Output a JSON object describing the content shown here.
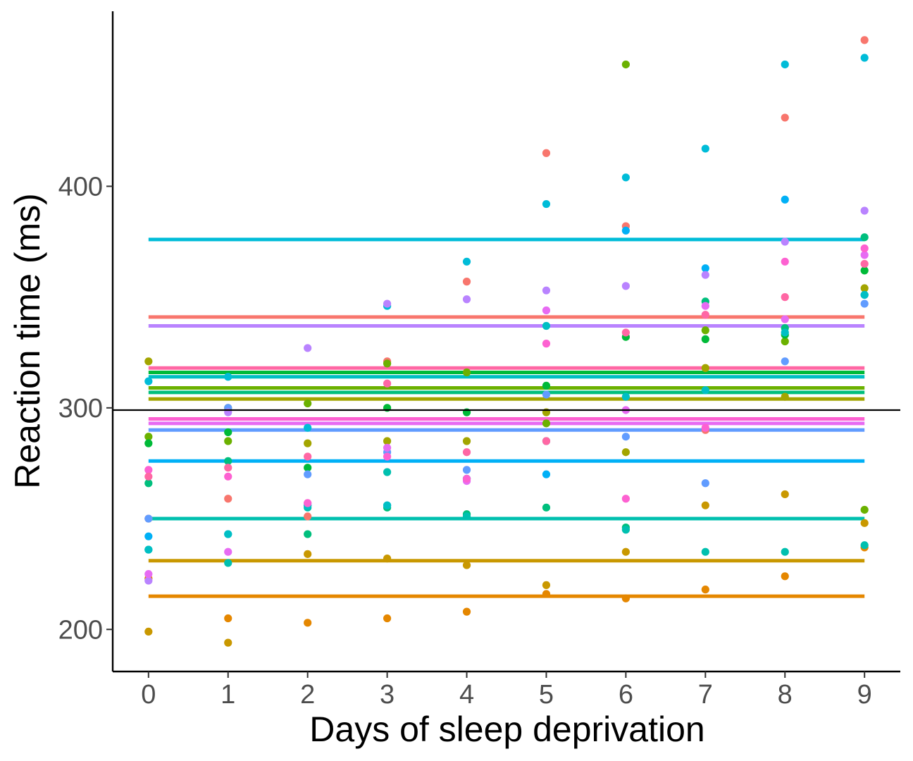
{
  "chart_data": {
    "type": "scatter",
    "title": "",
    "xlabel": "Days of sleep deprivation",
    "ylabel": "Reaction time (ms)",
    "xlim": [
      -0.45,
      9.45
    ],
    "ylim": [
      181,
      479
    ],
    "x_ticks": [
      0,
      1,
      2,
      3,
      4,
      5,
      6,
      7,
      8,
      9
    ],
    "y_ticks": [
      200,
      300,
      400
    ],
    "grid": false,
    "legend": "none",
    "reference_line": {
      "y": 299
    },
    "series": [
      {
        "color": "#F8766D",
        "intercept": 341,
        "values": [
          250,
          259,
          251,
          321,
          357,
          415,
          382,
          290,
          431,
          466
        ]
      },
      {
        "color": "#E58700",
        "intercept": 215,
        "values": [
          223,
          205,
          203,
          205,
          208,
          216,
          214,
          218,
          224,
          237
        ]
      },
      {
        "color": "#C99800",
        "intercept": 231,
        "values": [
          199,
          194,
          234,
          232,
          229,
          220,
          235,
          256,
          261,
          248
        ]
      },
      {
        "color": "#A3A500",
        "intercept": 304,
        "values": [
          321,
          300,
          284,
          285,
          285,
          298,
          280,
          318,
          305,
          354
        ]
      },
      {
        "color": "#6BB100",
        "intercept": 309,
        "values": [
          287,
          285,
          302,
          320,
          316,
          293,
          455,
          335,
          330,
          254
        ]
      },
      {
        "color": "#00BA38",
        "intercept": 316,
        "values": [
          284,
          289,
          273,
          300,
          298,
          310,
          332,
          331,
          333,
          362
        ]
      },
      {
        "color": "#00BF7D",
        "intercept": 307,
        "values": [
          266,
          276,
          243,
          255,
          252,
          255,
          246,
          348,
          336,
          377
        ]
      },
      {
        "color": "#00C0AF",
        "intercept": 250,
        "values": [
          236,
          230,
          255,
          271,
          251,
          285,
          245,
          235,
          235,
          238
        ]
      },
      {
        "color": "#00BCD8",
        "intercept": 376,
        "values": [
          312,
          314,
          291,
          346,
          366,
          392,
          404,
          417,
          455,
          458
        ]
      },
      {
        "color": "#00B0F6",
        "intercept": 276,
        "values": [
          242,
          243,
          256,
          256,
          268,
          270,
          380,
          363,
          394,
          351
        ]
      },
      {
        "color": "#00BFC4",
        "intercept": 314,
        "values": [
          236,
          243,
          256,
          256,
          268,
          337,
          305,
          308,
          334,
          351
        ]
      },
      {
        "color": "#619CFF",
        "intercept": 290,
        "values": [
          250,
          300,
          270,
          280,
          272,
          306,
          287,
          266,
          321,
          347
        ]
      },
      {
        "color": "#B983FF",
        "intercept": 337,
        "values": [
          222,
          298,
          327,
          347,
          349,
          353,
          355,
          360,
          375,
          389
        ]
      },
      {
        "color": "#E76BF3",
        "intercept": 293,
        "values": [
          225,
          235,
          257,
          282,
          267,
          344,
          299,
          346,
          340,
          369
        ]
      },
      {
        "color": "#FD61D1",
        "intercept": 295,
        "values": [
          272,
          269,
          257,
          278,
          268,
          329,
          259,
          291,
          366,
          372
        ]
      },
      {
        "color": "#FF67A4",
        "intercept": 318,
        "values": [
          269,
          273,
          278,
          311,
          280,
          285,
          334,
          342,
          350,
          365
        ]
      }
    ]
  }
}
